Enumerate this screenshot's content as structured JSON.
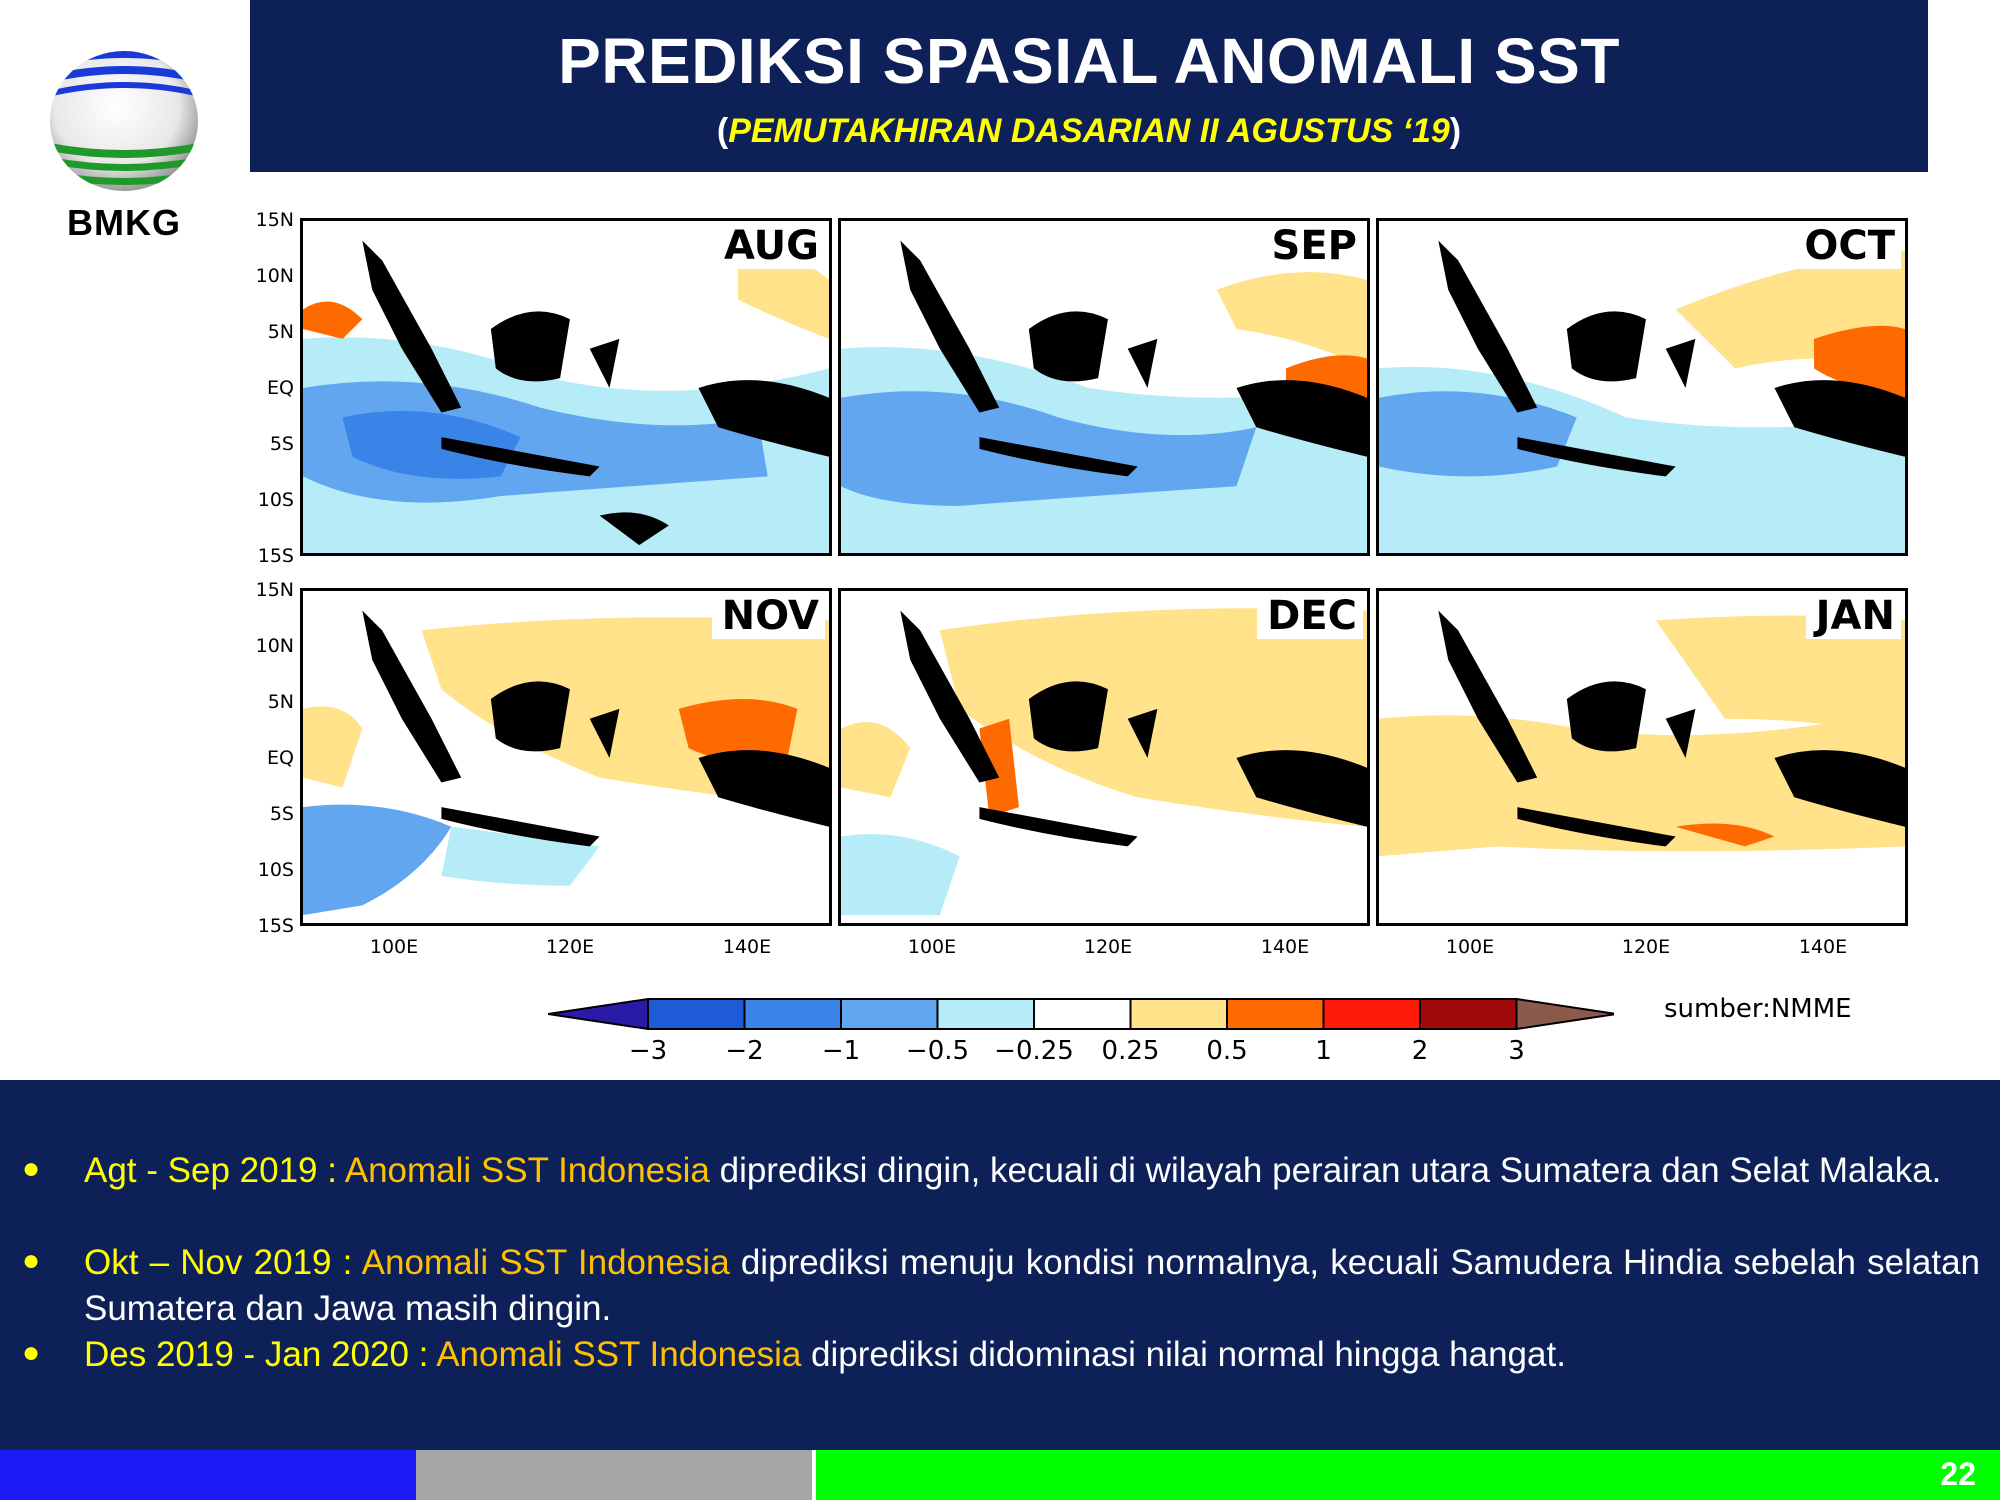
{
  "logo": {
    "text": "BMKG",
    "icon": "bmkg-globe-logo"
  },
  "header": {
    "title": "PREDIKSI SPASIAL ANOMALI SST",
    "subtitle_open": "(",
    "subtitle": "PEMUTAKHIRAN DASARIAN II AGUSTUS ‘19",
    "subtitle_close": ")"
  },
  "map": {
    "months": [
      "AUG",
      "SEP",
      "OCT",
      "NOV",
      "DEC",
      "JAN"
    ],
    "lat_labels": [
      "15N",
      "10N",
      "5N",
      "EQ",
      "5S",
      "10S",
      "15S"
    ],
    "lon_labels": [
      "100E",
      "120E",
      "140E"
    ],
    "colorbar_labels": [
      "−3",
      "−2",
      "−1",
      "−0.5",
      "−0.25",
      "0.25",
      "0.5",
      "1",
      "2",
      "3"
    ],
    "colorbar_colors": [
      "#2a1aa8",
      "#1f5bd6",
      "#3a84e8",
      "#62a6f0",
      "#b5ecf8",
      "#ffffff",
      "#ffe28a",
      "#ff6a00",
      "#ff1a0a",
      "#a00a0a",
      "#8b5a4a"
    ],
    "source": "sumber:NMME"
  },
  "bullets": [
    {
      "period": "Agt - Sep 2019 : ",
      "subject": "Anomali SST Indonesia",
      "text": " diprediksi dingin, kecuali di wilayah perairan utara Sumatera dan Selat Malaka."
    },
    {
      "period": "Okt – Nov 2019 : ",
      "subject": "Anomali SST Indonesia",
      "text": " diprediksi menuju kondisi normalnya, kecuali Samudera Hindia sebelah selatan Sumatera dan Jawa masih dingin."
    },
    {
      "period": "Des 2019 - Jan 2020 : ",
      "subject": "Anomali SST Indonesia",
      "text": " diprediksi didominasi nilai normal hingga hangat."
    }
  ],
  "footer": {
    "page_number": "22"
  }
}
